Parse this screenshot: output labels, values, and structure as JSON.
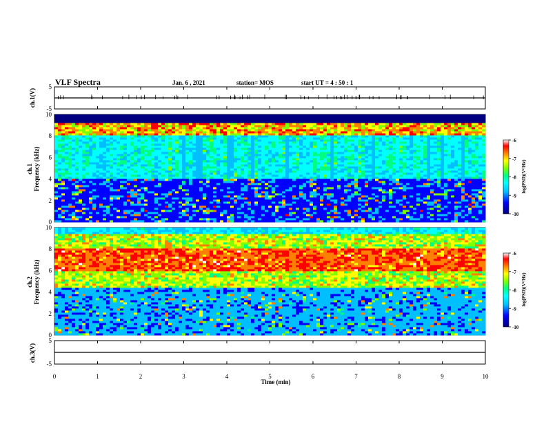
{
  "header": {
    "title": "VLF Spectra",
    "date": "Jan. 6 , 2021",
    "station": "station= MOS",
    "start": "start UT =  4 : 50 : 1"
  },
  "chart_data": {
    "type": "heatmap",
    "title": "VLF Spectra",
    "xlabel": "Time (min)",
    "xlim": [
      0,
      10
    ],
    "x_ticks": [
      "0",
      "1",
      "2",
      "3",
      "4",
      "5",
      "6",
      "7",
      "8",
      "9",
      "10"
    ],
    "panels": [
      {
        "name": "ch.1(V)",
        "kind": "waveform",
        "ylabel": "ch.1(V)",
        "ylim": [
          -5,
          5
        ],
        "y_ticks": [
          "5",
          "-5"
        ]
      },
      {
        "name": "ch.1",
        "kind": "spectrogram",
        "ylabel_line1": "ch.1",
        "ylabel_line2": "Frequency (kHz)",
        "ylim": [
          0,
          10
        ],
        "y_ticks": [
          "0",
          "2",
          "4",
          "6",
          "8",
          "10"
        ],
        "intensity_note": "strongest 8-9 kHz band with vertical spikes; horizontal lines below 4 kHz",
        "colorbar": {
          "label": "log(PSD)(V²/Hz)",
          "range": [
            -10,
            -6
          ],
          "ticks": [
            "-6",
            "-7",
            "-8",
            "-9",
            "-10"
          ]
        }
      },
      {
        "name": "ch.2",
        "kind": "spectrogram",
        "ylabel_line1": "ch.2",
        "ylabel_line2": "Frequency (kHz)",
        "ylim": [
          0,
          10
        ],
        "y_ticks": [
          "0",
          "2",
          "4",
          "6",
          "8",
          "10"
        ],
        "intensity_note": "strong broadband emission centered 6-8 kHz",
        "colorbar": {
          "label": "log(PSD)(V²/Hz)",
          "range": [
            -10,
            -6
          ],
          "ticks": [
            "-6",
            "-7",
            "-8",
            "-9",
            "-10"
          ]
        }
      },
      {
        "name": "ch.3(V)",
        "kind": "waveform",
        "ylabel": "ch.3(V)",
        "ylim": [
          -5,
          5
        ],
        "y_ticks": [
          "5",
          "-5"
        ]
      }
    ],
    "colormap": [
      "#000080",
      "#0000ff",
      "#00bfff",
      "#00ffff",
      "#00ff80",
      "#80ff00",
      "#ffff00",
      "#ff8000",
      "#ff0000",
      "#ffffff"
    ]
  }
}
